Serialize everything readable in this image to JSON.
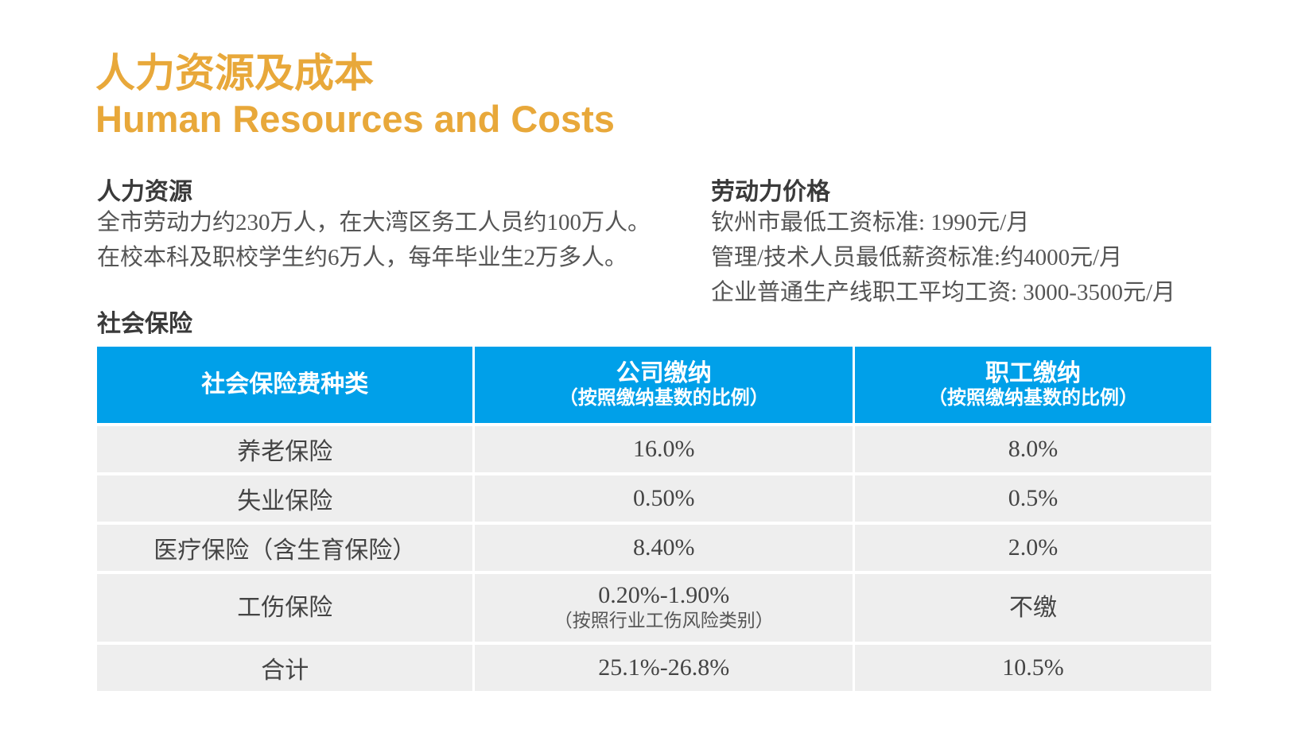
{
  "title_cn": "人力资源及成本",
  "title_en": "Human Resources and Costs",
  "hr": {
    "heading": "人力资源",
    "lines": [
      "全市劳动力约230万人，在大湾区务工人员约100万人。",
      "在校本科及职校学生约6万人，每年毕业生2万多人。"
    ]
  },
  "labor": {
    "heading": "劳动力价格",
    "lines": [
      "钦州市最低工资标准: 1990元/月",
      "管理/技术人员最低薪资标准:约4000元/月",
      "企业普通生产线职工平均工资: 3000-3500元/月"
    ]
  },
  "insurance": {
    "heading": "社会保险",
    "headers": [
      {
        "main": "社会保险费种类"
      },
      {
        "main": "公司缴纳",
        "sub": "（按照缴纳基数的比例）"
      },
      {
        "main": "职工缴纳",
        "sub": "（按照缴纳基数的比例）"
      }
    ],
    "rows": [
      {
        "type": "养老保险",
        "company": "16.0%",
        "employee": "8.0%"
      },
      {
        "type": "失业保险",
        "company": "0.50%",
        "employee": "0.5%"
      },
      {
        "type": "医疗保险（含生育保险）",
        "company": "8.40%",
        "employee": "2.0%"
      },
      {
        "type": "工伤保险",
        "company": "0.20%-1.90%",
        "company_note": "（按照行业工伤风险类别）",
        "employee": "不缴"
      },
      {
        "type": "合计",
        "company": "25.1%-26.8%",
        "employee": "10.5%"
      }
    ]
  },
  "colors": {
    "accent": "#e8a83a",
    "header": "#00a0e9",
    "row": "#eeeeee"
  }
}
